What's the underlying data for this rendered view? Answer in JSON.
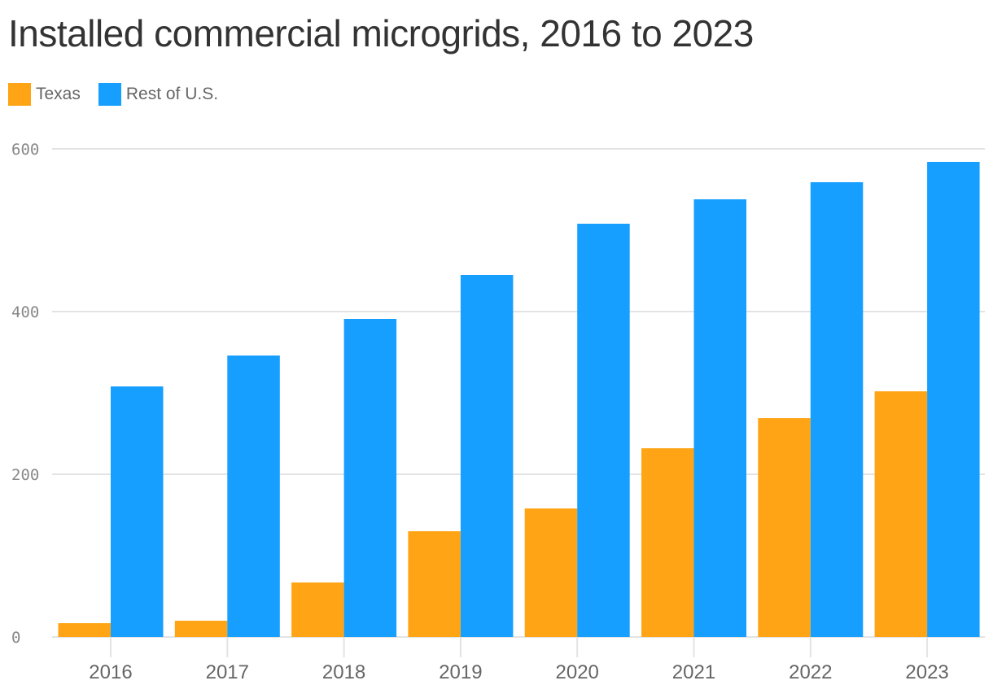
{
  "chart_data": {
    "type": "bar",
    "title": "Installed commercial microgrids, 2016 to 2023",
    "categories": [
      "2016",
      "2017",
      "2018",
      "2019",
      "2020",
      "2021",
      "2022",
      "2023"
    ],
    "series": [
      {
        "name": "Texas",
        "color": "#FFA515",
        "values": [
          17,
          20,
          67,
          130,
          158,
          232,
          269,
          302
        ]
      },
      {
        "name": "Rest of U.S.",
        "color": "#169FFF",
        "values": [
          308,
          346,
          391,
          445,
          508,
          538,
          559,
          584
        ]
      }
    ],
    "yticks": [
      "0",
      "200",
      "400",
      "600"
    ],
    "ylim": [
      0,
      600
    ],
    "grid": true,
    "legend": "top-left",
    "xlabel": "",
    "ylabel": ""
  }
}
